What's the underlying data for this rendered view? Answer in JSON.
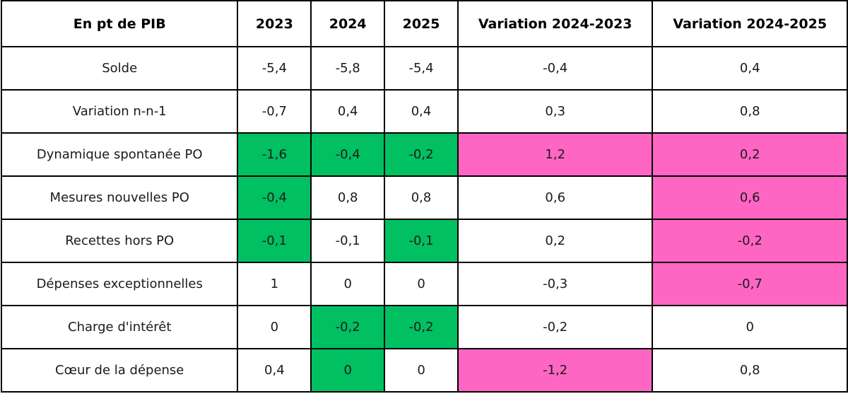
{
  "table": {
    "headers": [
      "En pt de PIB",
      "2023",
      "2024",
      "2025",
      "Variation 2024-2023",
      "Variation 2024-2025"
    ],
    "rows": [
      {
        "label": "Solde",
        "values": [
          "-5,4",
          "-5,8",
          "-5,4",
          "-0,4",
          "0,4"
        ],
        "highlight": [
          "none",
          "none",
          "none",
          "none",
          "none"
        ]
      },
      {
        "label": "Variation n-n-1",
        "values": [
          "-0,7",
          "0,4",
          "0,4",
          "0,3",
          "0,8"
        ],
        "highlight": [
          "none",
          "none",
          "none",
          "none",
          "none"
        ]
      },
      {
        "label": "Dynamique spontanée PO",
        "values": [
          "-1,6",
          "-0,4",
          "-0,2",
          "1,2",
          "0,2"
        ],
        "highlight": [
          "green",
          "green",
          "green",
          "pink",
          "pink"
        ]
      },
      {
        "label": "Mesures nouvelles PO",
        "values": [
          "-0,4",
          "0,8",
          "0,8",
          "0,6",
          "0,6"
        ],
        "highlight": [
          "green",
          "none",
          "none",
          "none",
          "pink"
        ]
      },
      {
        "label": "Recettes hors PO",
        "values": [
          "-0,1",
          "-0,1",
          "-0,1",
          "0,2",
          "-0,2"
        ],
        "highlight": [
          "green",
          "none",
          "green",
          "none",
          "pink"
        ]
      },
      {
        "label": "Dépenses exceptionnelles",
        "values": [
          "1",
          "0",
          "0",
          "-0,3",
          "-0,7"
        ],
        "highlight": [
          "none",
          "none",
          "none",
          "none",
          "pink"
        ]
      },
      {
        "label": "Charge d'intérêt",
        "values": [
          "0",
          "-0,2",
          "-0,2",
          "-0,2",
          "0"
        ],
        "highlight": [
          "none",
          "green",
          "green",
          "none",
          "none"
        ]
      },
      {
        "label": "Cœur de la dépense",
        "values": [
          "0,4",
          "0",
          "0",
          "-1,2",
          "0,8"
        ],
        "highlight": [
          "none",
          "green",
          "none",
          "pink",
          "none"
        ]
      }
    ]
  },
  "colors": {
    "green": "#00c062",
    "pink": "#ff66c4",
    "border": "#000000",
    "background": "#ffffff"
  }
}
